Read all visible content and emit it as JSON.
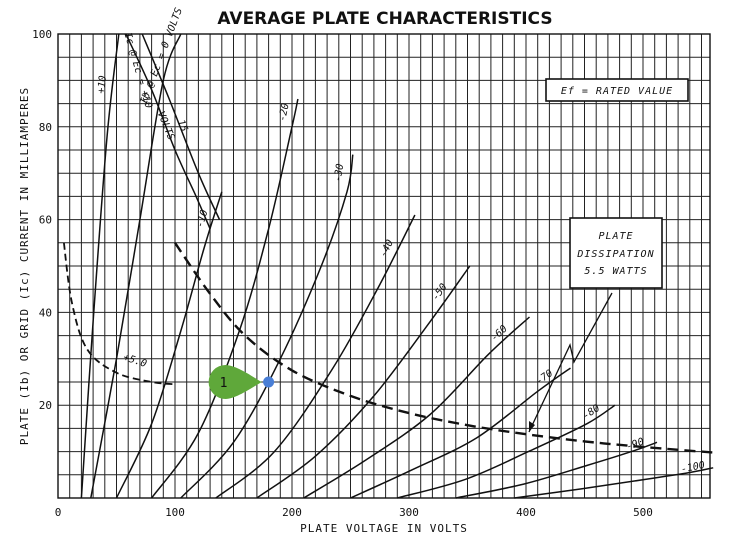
{
  "chart_data": {
    "type": "line",
    "title": "AVERAGE PLATE CHARACTERISTICS",
    "xlabel": "PLATE VOLTAGE IN VOLTS",
    "ylabel": "PLATE (Ib) OR GRID (Ic) CURRENT IN MILLIAMPERES",
    "xlim": [
      0,
      560
    ],
    "ylim": [
      0,
      100
    ],
    "x_ticks": [
      "0",
      "100",
      "200",
      "300",
      "400",
      "500"
    ],
    "y_ticks": [
      "100",
      "80",
      "60",
      "40",
      "20"
    ],
    "grid": true,
    "series": [
      {
        "name": "+10",
        "points": [
          [
            20,
            0
          ],
          [
            30,
            38
          ],
          [
            42,
            78
          ],
          [
            52,
            100
          ]
        ]
      },
      {
        "name": "Ib @ Ec = 0 VOLTS",
        "points": [
          [
            28,
            0
          ],
          [
            50,
            30
          ],
          [
            70,
            60
          ],
          [
            90,
            90
          ],
          [
            105,
            100
          ]
        ]
      },
      {
        "name": "-10",
        "points": [
          [
            50,
            0
          ],
          [
            80,
            16
          ],
          [
            105,
            36
          ],
          [
            125,
            54
          ],
          [
            140,
            66
          ]
        ]
      },
      {
        "name": "-20",
        "points": [
          [
            80,
            0
          ],
          [
            120,
            14
          ],
          [
            155,
            36
          ],
          [
            180,
            58
          ],
          [
            200,
            80
          ],
          [
            205,
            86
          ]
        ]
      },
      {
        "name": "-30",
        "points": [
          [
            105,
            0
          ],
          [
            150,
            12
          ],
          [
            190,
            30
          ],
          [
            225,
            50
          ],
          [
            247,
            66
          ],
          [
            252,
            74
          ]
        ]
      },
      {
        "name": "-40",
        "points": [
          [
            135,
            0
          ],
          [
            185,
            10
          ],
          [
            235,
            28
          ],
          [
            275,
            46
          ],
          [
            305,
            61
          ]
        ]
      },
      {
        "name": "-50",
        "points": [
          [
            170,
            0
          ],
          [
            220,
            9
          ],
          [
            270,
            22
          ],
          [
            318,
            38
          ],
          [
            352,
            50
          ]
        ]
      },
      {
        "name": "-60",
        "points": [
          [
            210,
            0
          ],
          [
            262,
            8
          ],
          [
            318,
            18
          ],
          [
            368,
            31
          ],
          [
            403,
            39
          ]
        ]
      },
      {
        "name": "-70",
        "points": [
          [
            250,
            0
          ],
          [
            302,
            6
          ],
          [
            358,
            13
          ],
          [
            410,
            23
          ],
          [
            438,
            28
          ]
        ]
      },
      {
        "name": "-80",
        "points": [
          [
            290,
            0
          ],
          [
            348,
            4
          ],
          [
            402,
            10
          ],
          [
            452,
            16
          ],
          [
            476,
            20
          ]
        ]
      },
      {
        "name": "-90",
        "points": [
          [
            340,
            0
          ],
          [
            398,
            3
          ],
          [
            452,
            7
          ],
          [
            490,
            10
          ],
          [
            512,
            12
          ]
        ]
      },
      {
        "name": "-100",
        "points": [
          [
            390,
            0
          ],
          [
            448,
            2
          ],
          [
            502,
            4
          ],
          [
            540,
            5.5
          ],
          [
            560,
            6.5
          ]
        ]
      }
    ],
    "grid_current_series": [
      {
        "name": "Ic @ Ec = +10",
        "points": [
          [
            58,
            100
          ],
          [
            80,
            88
          ],
          [
            100,
            75
          ],
          [
            118,
            65
          ],
          [
            130,
            58
          ]
        ]
      },
      {
        "name": "Ic @ Ec = +15",
        "points": [
          [
            72,
            100
          ],
          [
            95,
            86
          ],
          [
            120,
            70
          ],
          [
            138,
            60
          ]
        ]
      },
      {
        "name": "+5.0",
        "points": [
          [
            5,
            55
          ],
          [
            12,
            42
          ],
          [
            25,
            32
          ],
          [
            50,
            27
          ],
          [
            80,
            25
          ],
          [
            100,
            24.5
          ]
        ]
      }
    ],
    "grid_current_labels": [
      "Ic @ Ec = +10",
      "VOLTS",
      "15"
    ],
    "plate_dissipation": {
      "watts": 5.5,
      "points": [
        [
          100,
          55
        ],
        [
          130,
          44
        ],
        [
          160,
          35
        ],
        [
          200,
          27.5
        ],
        [
          250,
          22
        ],
        [
          300,
          18.3
        ],
        [
          350,
          15.7
        ],
        [
          400,
          13.75
        ],
        [
          450,
          12.2
        ],
        [
          500,
          11
        ],
        [
          560,
          9.8
        ]
      ]
    },
    "annotations": {
      "ef_box": "Ef = RATED VALUE",
      "dissipation_box": [
        "PLATE",
        "DISSIPATION",
        "5.5 WATTS"
      ]
    },
    "marker": {
      "label": "1",
      "x": 180,
      "y": 25,
      "color": "#5fa83a",
      "dot_color": "#4a7fd6"
    }
  }
}
